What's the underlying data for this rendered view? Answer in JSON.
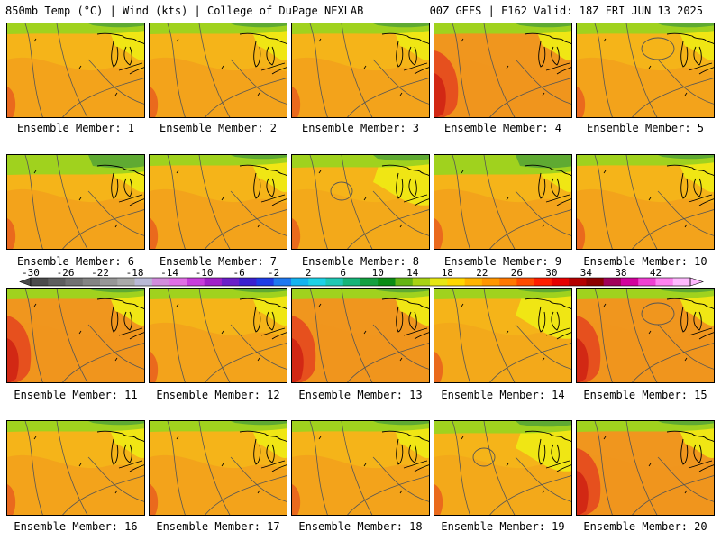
{
  "header": {
    "left": "850mb Temp (°C) | Wind (kts) | College of DuPage NEXLAB",
    "right": "00Z GEFS | F162 Valid: 18Z FRI JUN 13 2025"
  },
  "panel_label_prefix": "Ensemble Member: ",
  "members": [
    {
      "id": "1",
      "warmth": "warm"
    },
    {
      "id": "2",
      "warmth": "warm"
    },
    {
      "id": "3",
      "warmth": "warm"
    },
    {
      "id": "4",
      "warmth": "hot-west"
    },
    {
      "id": "5",
      "warmth": "warm"
    },
    {
      "id": "6",
      "warmth": "mild-north"
    },
    {
      "id": "7",
      "warmth": "warm"
    },
    {
      "id": "8",
      "warmth": "mild-low"
    },
    {
      "id": "9",
      "warmth": "mild-north"
    },
    {
      "id": "10",
      "warmth": "warm"
    },
    {
      "id": "11",
      "warmth": "hot-west"
    },
    {
      "id": "12",
      "warmth": "warm"
    },
    {
      "id": "13",
      "warmth": "hot-west"
    },
    {
      "id": "14",
      "warmth": "mild"
    },
    {
      "id": "15",
      "warmth": "hot-west"
    },
    {
      "id": "16",
      "warmth": "warm"
    },
    {
      "id": "17",
      "warmth": "warm"
    },
    {
      "id": "18",
      "warmth": "warm"
    },
    {
      "id": "19",
      "warmth": "mild-low"
    },
    {
      "id": "20",
      "warmth": "hot-west"
    }
  ],
  "colorbar": {
    "labels": [
      "-30",
      "-26",
      "-22",
      "-18",
      "-14",
      "-10",
      "-6",
      "-2",
      "2",
      "6",
      "10",
      "14",
      "18",
      "22",
      "26",
      "30",
      "34",
      "38",
      "42"
    ],
    "colors": [
      "#4b4b4b",
      "#5e5e5e",
      "#717171",
      "#848484",
      "#979797",
      "#aaaaaa",
      "#b9b9d7",
      "#d28cdc",
      "#e16ee6",
      "#c83cdc",
      "#a020c8",
      "#6a1fc8",
      "#3a20d0",
      "#1e3ce6",
      "#1e78f0",
      "#14b4f0",
      "#1ed2e6",
      "#20c8b4",
      "#16b478",
      "#14a040",
      "#0a8c14",
      "#64b414",
      "#a8d214",
      "#e6e614",
      "#ffd700",
      "#ffb400",
      "#ff9600",
      "#ff7800",
      "#ff4b00",
      "#ff1e00",
      "#e60000",
      "#b40000",
      "#8c0000",
      "#a0005a",
      "#d2009c",
      "#f040d2",
      "#ff82f0",
      "#ffbaff"
    ]
  },
  "colors": {
    "cold": "#5faa32",
    "cool": "#a0d21e",
    "mild": "#f0e614",
    "warm": "#f5b419",
    "warmer": "#f0961e",
    "hot": "#e6501e",
    "hottest": "#d22814",
    "contour": "#555555",
    "coast": "#000000"
  }
}
